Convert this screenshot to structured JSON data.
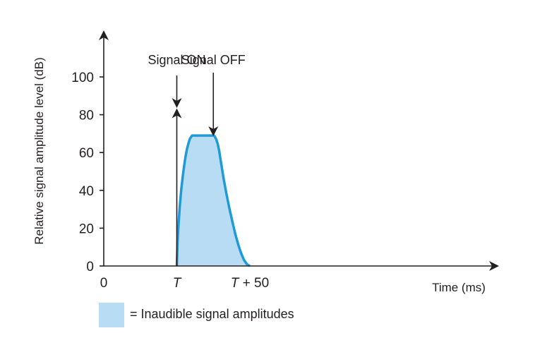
{
  "chart_data": {
    "type": "area",
    "ylabel": "Relative signal amplitude level (dB)",
    "xlabel": "Time (ms)",
    "y_ticks": [
      0,
      20,
      40,
      60,
      80,
      100
    ],
    "ylim": [
      0,
      120
    ],
    "x_ticks": [
      {
        "label": "0",
        "t": 0,
        "italic": false
      },
      {
        "label": "T",
        "t": 50,
        "italic": true
      },
      {
        "label": "T + 50",
        "t": 100,
        "italic": true
      }
    ],
    "xlim": [
      0,
      112
    ],
    "annotations": {
      "signal_on": {
        "label": "Signal ON",
        "t": 50
      },
      "signal_off": {
        "label": "Signal OFF",
        "t": 75
      }
    },
    "series": [
      {
        "name": "Inaudible signal amplitudes",
        "color": "#1e9ad6",
        "fill": "#b8dcf3",
        "x": [
          50,
          50.5,
          51,
          52,
          53,
          54,
          55,
          56,
          57,
          58,
          59,
          60,
          60.5,
          61,
          62,
          64,
          66,
          68,
          70,
          72,
          74,
          75,
          75.5,
          76,
          77,
          78,
          79,
          80,
          82,
          84,
          86,
          88,
          90,
          92,
          94,
          96,
          98,
          100
        ],
        "y": [
          0,
          12,
          20,
          31,
          40,
          47,
          53,
          58,
          62,
          65,
          67.3,
          68.5,
          69,
          69,
          69,
          69,
          69,
          69,
          69,
          69,
          69,
          69,
          69,
          68.5,
          67,
          64.5,
          61,
          56,
          46.5,
          38,
          30.5,
          23.5,
          17,
          11.5,
          6.8,
          3.2,
          0.9,
          0
        ]
      }
    ],
    "legend": {
      "swatch_color": "#b8dcf3",
      "text": "= Inaudible signal amplitudes",
      "placement": "bottom-left"
    }
  }
}
